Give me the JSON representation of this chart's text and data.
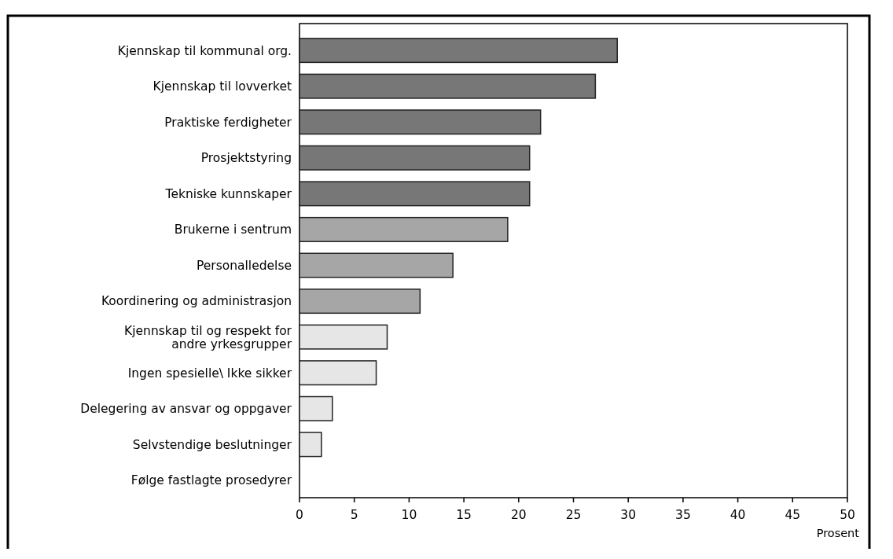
{
  "chart_data": {
    "type": "bar",
    "orientation": "horizontal",
    "xlabel": "Prosent",
    "categories": [
      "Kjennskap til kommunal org.",
      "Kjennskap til lovverket",
      "Praktiske ferdigheter",
      "Prosjektstyring",
      "Tekniske kunnskaper",
      "Brukerne i sentrum",
      "Personalledelse",
      "Koordinering og administrasjon",
      "Kjennskap til og respekt for\nandre yrkesgrupper",
      "Ingen spesielle\\ Ikke sikker",
      "Delegering av ansvar og oppgaver",
      "Selvstendige beslutninger",
      "Følge fastlagte prosedyrer"
    ],
    "values": [
      29,
      27,
      22,
      21,
      21,
      19,
      14,
      11,
      8,
      7,
      3,
      2,
      0
    ],
    "colors": [
      "#777777",
      "#777777",
      "#777777",
      "#777777",
      "#777777",
      "#a6a6a6",
      "#a6a6a6",
      "#a6a6a6",
      "#e6e6e6",
      "#e6e6e6",
      "#e6e6e6",
      "#e6e6e6",
      "#e6e6e6"
    ],
    "xlim": [
      0,
      50
    ],
    "xticks": [
      0,
      5,
      10,
      15,
      20,
      25,
      30,
      35,
      40,
      45,
      50
    ],
    "grid": false
  }
}
